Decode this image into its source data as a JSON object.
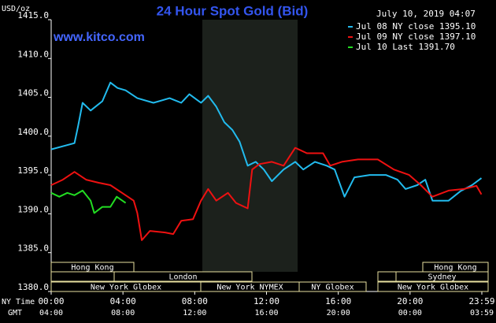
{
  "chart_data": {
    "type": "line",
    "title": "24 Hour Spot Gold (Bid)",
    "unit_label": "USD/oz",
    "timestamp": "July 10, 2019 04:07",
    "website": "www.kitco.com",
    "x_label": "NY Time",
    "x2_label": "GMT",
    "xlim": [
      0,
      24
    ],
    "xticks": [
      {
        "value": 0,
        "label": "00:00"
      },
      {
        "value": 4,
        "label": "04:00"
      },
      {
        "value": 8,
        "label": "08:00"
      },
      {
        "value": 12,
        "label": "12:00"
      },
      {
        "value": 16,
        "label": "16:00"
      },
      {
        "value": 20,
        "label": "20:00"
      },
      {
        "value": 24,
        "label": "23:59"
      }
    ],
    "gmt_labels": [
      "04:00",
      "08:00",
      "12:00",
      "16:00",
      "20:00",
      "00:00",
      "03:59"
    ],
    "ylim": [
      1380,
      1415
    ],
    "yticks": [
      {
        "value": 1380,
        "label": "1380.0"
      },
      {
        "value": 1385,
        "label": "1385.0"
      },
      {
        "value": 1390,
        "label": "1390.0"
      },
      {
        "value": 1395,
        "label": "1395.0"
      },
      {
        "value": 1400,
        "label": "1400.0"
      },
      {
        "value": 1405,
        "label": "1405.0"
      },
      {
        "value": 1410,
        "label": "1410.0"
      },
      {
        "value": 1415,
        "label": "1415.0"
      }
    ],
    "grid": false,
    "sessions": [
      "Hong Kong",
      "London",
      "New York Globex",
      "New York NYMEX",
      "NY Globex",
      "Hong Kong",
      "Sydney",
      "New York Globex"
    ],
    "series": [
      {
        "name": "Jul 08 NY close 1395.10",
        "color": "#22bbee",
        "x": [
          0,
          1.3,
          1.5,
          1.75,
          2.2,
          2.85,
          3.3,
          3.7,
          4.15,
          4.8,
          5.7,
          6.6,
          7.25,
          7.7,
          8.35,
          8.75,
          9.2,
          9.65,
          10.1,
          10.5,
          10.95,
          11.4,
          11.85,
          12.3,
          12.95,
          13.6,
          14.05,
          14.7,
          15.35,
          15.8,
          16.35,
          16.9,
          17.75,
          18.65,
          19.3,
          19.75,
          20.4,
          20.85,
          21.25,
          22.15,
          22.8,
          23.45,
          23.98
        ],
        "values": [
          1398.3,
          1399.1,
          1401.3,
          1404.3,
          1403.3,
          1404.5,
          1406.9,
          1406.2,
          1405.9,
          1404.9,
          1404.3,
          1404.9,
          1404.3,
          1405.4,
          1404.3,
          1405.2,
          1403.8,
          1401.8,
          1400.8,
          1399.3,
          1396.2,
          1396.7,
          1395.7,
          1394.2,
          1395.7,
          1396.7,
          1395.7,
          1396.7,
          1396.2,
          1395.7,
          1392.2,
          1394.7,
          1395.0,
          1395.0,
          1394.4,
          1393.2,
          1393.7,
          1394.4,
          1391.7,
          1391.7,
          1392.9,
          1393.7,
          1394.6
        ]
      },
      {
        "name": "Jul 09 NY close 1397.10",
        "color": "#ee1111",
        "x": [
          0,
          0.65,
          1.3,
          1.95,
          2.65,
          3.3,
          3.95,
          4.6,
          4.8,
          5.05,
          5.5,
          6.35,
          6.8,
          7.25,
          7.9,
          8.35,
          8.75,
          9.2,
          9.85,
          10.3,
          10.95,
          11.2,
          11.6,
          12.3,
          12.95,
          13.6,
          14.25,
          15.15,
          15.55,
          16.2,
          17.1,
          18.2,
          19.1,
          19.95,
          20.6,
          21.25,
          22.15,
          23.0,
          23.7,
          23.98
        ],
        "values": [
          1393.7,
          1394.4,
          1395.4,
          1394.4,
          1394.0,
          1393.7,
          1392.7,
          1391.7,
          1390.1,
          1386.6,
          1387.8,
          1387.6,
          1387.4,
          1389.1,
          1389.3,
          1391.7,
          1393.2,
          1391.7,
          1392.7,
          1391.4,
          1390.7,
          1395.7,
          1396.4,
          1396.7,
          1396.2,
          1398.5,
          1397.8,
          1397.8,
          1396.2,
          1396.7,
          1397.0,
          1397.0,
          1395.7,
          1395.0,
          1393.7,
          1392.2,
          1393.0,
          1393.2,
          1393.6,
          1392.5
        ]
      },
      {
        "name": "Jul 10 Last 1391.70",
        "color": "#22dd22",
        "x": [
          0,
          0.45,
          0.9,
          1.3,
          1.75,
          2.2,
          2.4,
          2.85,
          3.3,
          3.65,
          4.15
        ],
        "values": [
          1392.7,
          1392.2,
          1392.7,
          1392.4,
          1393.0,
          1391.7,
          1390.1,
          1390.9,
          1390.9,
          1392.2,
          1391.4
        ]
      }
    ]
  }
}
